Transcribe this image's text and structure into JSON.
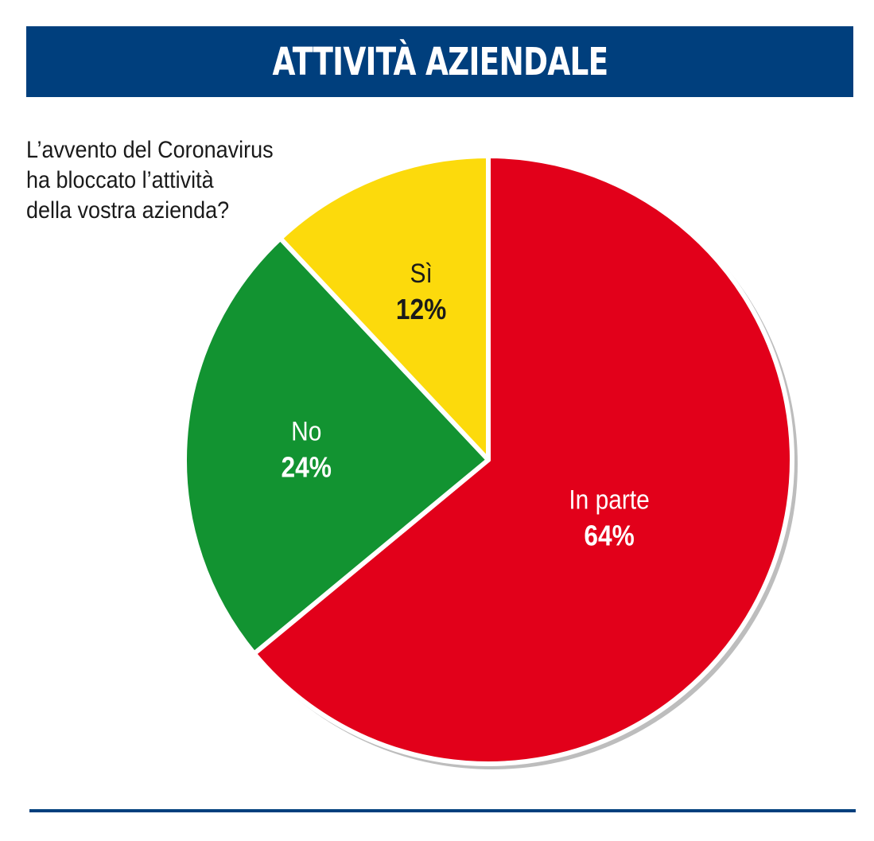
{
  "header": {
    "title": "ATTIVITÀ AZIENDALE",
    "color": "#003f7d"
  },
  "question": {
    "lines": [
      "L’avvento del Coronavirus",
      "ha bloccato l’attività",
      "della vostra azienda?"
    ]
  },
  "chart_data": {
    "type": "pie",
    "title": "",
    "slices": [
      {
        "label": "In parte",
        "value": 64,
        "display": "64%",
        "color": "#e2001a",
        "label_color": "#ffffff",
        "label_weight": "normal"
      },
      {
        "label": "No",
        "value": 24,
        "display": "24%",
        "color": "#129331",
        "label_color": "#ffffff",
        "label_weight": "normal"
      },
      {
        "label": "Sì",
        "value": 12,
        "display": "12%",
        "color": "#fcda0c",
        "label_color": "#1a1a1a",
        "label_weight": "normal"
      }
    ],
    "start": "12 o'clock, clockwise",
    "legend": "none"
  },
  "colors": {
    "rule": "#003f7d",
    "shadow": "#bdbdbd"
  }
}
